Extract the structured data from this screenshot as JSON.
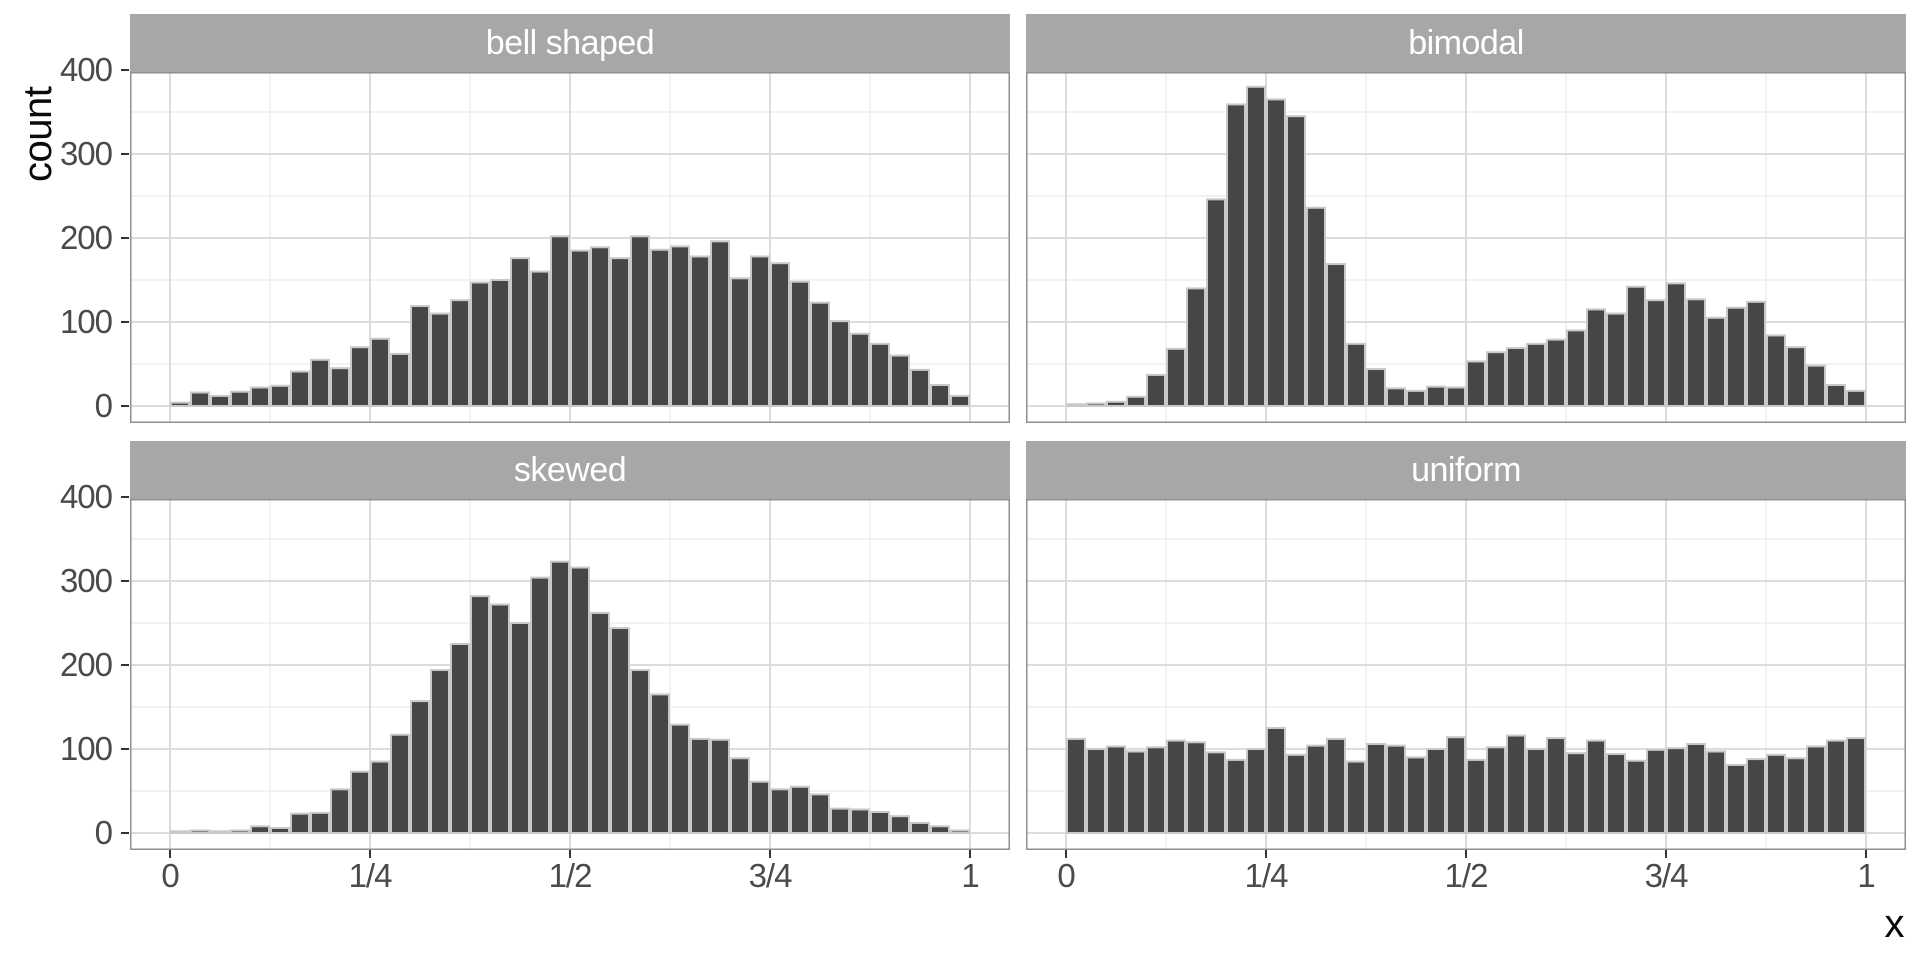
{
  "chart_data": {
    "type": "bar",
    "subtype": "faceted-histogram",
    "title": "",
    "ylabel": "count",
    "xlabel": "x",
    "ylim": [
      0,
      400
    ],
    "grid": true,
    "legend": "none",
    "y_ticks": [
      {
        "label": "0",
        "value": 0
      },
      {
        "label": "100",
        "value": 100
      },
      {
        "label": "200",
        "value": 200
      },
      {
        "label": "300",
        "value": 300
      },
      {
        "label": "400",
        "value": 400
      }
    ],
    "y_minor_ticks": [
      50,
      150,
      250,
      350
    ],
    "x_ticks": [
      {
        "label": "0",
        "value": 0
      },
      {
        "label": "1/4",
        "value": 0.25
      },
      {
        "label": "1/2",
        "value": 0.5
      },
      {
        "label": "3/4",
        "value": 0.75
      },
      {
        "label": "1",
        "value": 1
      }
    ],
    "x_minor_ticks": [
      0.125,
      0.375,
      0.625,
      0.875
    ],
    "bin_start": 0,
    "bin_width": 0.025,
    "facets": [
      {
        "label": "bell shaped",
        "values": [
          4,
          16,
          12,
          17,
          22,
          24,
          41,
          55,
          45,
          70,
          80,
          62,
          119,
          110,
          126,
          147,
          150,
          176,
          160,
          202,
          185,
          189,
          176,
          202,
          186,
          190,
          178,
          196,
          152,
          178,
          170,
          148,
          123,
          101,
          86,
          74,
          60,
          43,
          25,
          12
        ]
      },
      {
        "label": "bimodal",
        "values": [
          2,
          3,
          5,
          11,
          37,
          68,
          140,
          246,
          359,
          380,
          365,
          345,
          236,
          169,
          74,
          44,
          21,
          18,
          23,
          22,
          53,
          64,
          69,
          74,
          79,
          90,
          115,
          110,
          142,
          126,
          146,
          127,
          105,
          117,
          124,
          84,
          70,
          48,
          25,
          18
        ]
      },
      {
        "label": "skewed",
        "values": [
          2,
          3,
          2,
          3,
          8,
          6,
          23,
          24,
          52,
          73,
          85,
          117,
          157,
          194,
          225,
          282,
          272,
          250,
          304,
          323,
          316,
          262,
          244,
          194,
          165,
          129,
          112,
          111,
          89,
          61,
          52,
          55,
          46,
          29,
          28,
          25,
          20,
          12,
          8,
          3
        ]
      },
      {
        "label": "uniform",
        "values": [
          112,
          100,
          103,
          97,
          102,
          110,
          108,
          96,
          87,
          100,
          125,
          93,
          104,
          112,
          85,
          106,
          104,
          90,
          100,
          114,
          87,
          102,
          116,
          100,
          113,
          95,
          110,
          94,
          86,
          99,
          101,
          106,
          97,
          81,
          88,
          93,
          89,
          103,
          110,
          113
        ]
      }
    ],
    "colors": {
      "bar_fill": "#464646",
      "bar_stroke": "#c9c9c9",
      "strip_fill": "#a7a7a7",
      "strip_text": "#ffffff",
      "grid_major": "#dcdcdc",
      "grid_minor": "#ededed",
      "panel_border": "#8f8f8f",
      "panel_bg": "#ffffff",
      "axis_text": "#4a4a4a",
      "tick_mark": "#333333"
    }
  }
}
